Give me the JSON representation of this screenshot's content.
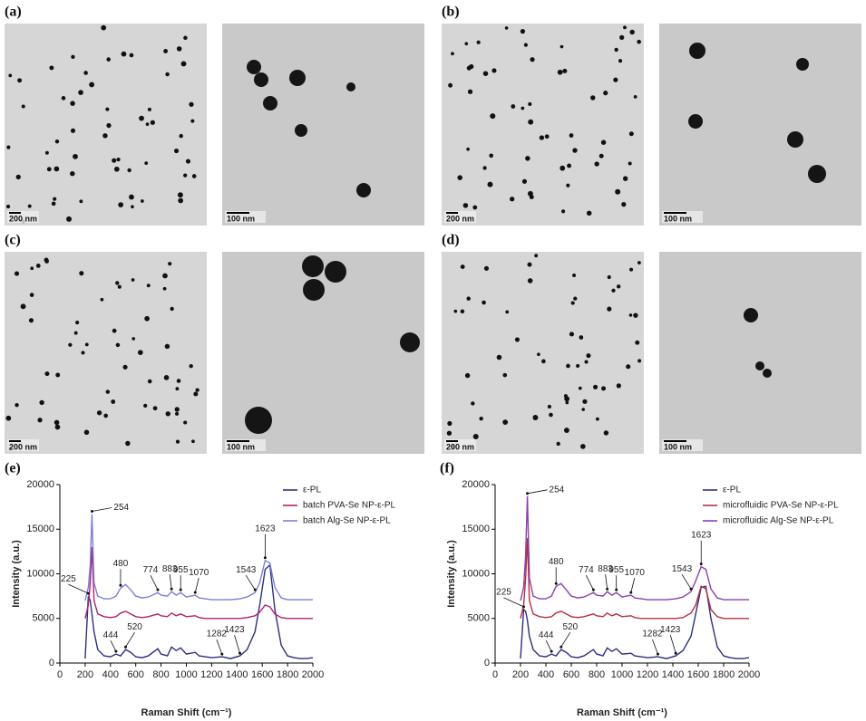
{
  "panels": [
    {
      "label": "(a)",
      "scale_bars": [
        "200 nm",
        "100 nm"
      ]
    },
    {
      "label": "(b)",
      "scale_bars": [
        "200 nm",
        "100 nm"
      ]
    },
    {
      "label": "(c)",
      "scale_bars": [
        "200 nm",
        "100 nm"
      ]
    },
    {
      "label": "(d)",
      "scale_bars": [
        "200 nm",
        "100 nm"
      ]
    }
  ],
  "chart_data": [
    {
      "type": "line",
      "panel_label": "(e)",
      "x_label": "Raman Shift (cm⁻¹)",
      "y_label": "Intensity (a.u.)",
      "xlim": [
        0,
        2000
      ],
      "xticks": [
        0,
        200,
        400,
        600,
        800,
        1000,
        1200,
        1400,
        1600,
        1800,
        2000
      ],
      "ylim": [
        0,
        20000
      ],
      "yticks": [
        0,
        5000,
        10000,
        15000,
        20000
      ],
      "x": [
        200,
        225,
        240,
        254,
        270,
        300,
        350,
        400,
        444,
        480,
        520,
        560,
        600,
        650,
        700,
        774,
        800,
        850,
        883,
        920,
        955,
        1000,
        1070,
        1100,
        1150,
        1200,
        1282,
        1350,
        1423,
        1480,
        1543,
        1580,
        1623,
        1660,
        1700,
        1750,
        1800,
        1850,
        1900,
        1950,
        2000
      ],
      "series": [
        {
          "name": "ε-PL",
          "color": "#2e2f80",
          "values": [
            500,
            7500,
            7000,
            5500,
            3500,
            1500,
            800,
            700,
            1000,
            800,
            1500,
            1200,
            700,
            600,
            800,
            1600,
            1000,
            800,
            1800,
            1400,
            1700,
            1000,
            1200,
            800,
            700,
            600,
            700,
            500,
            800,
            1500,
            3500,
            6500,
            10500,
            11000,
            6000,
            2000,
            800,
            600,
            500,
            500,
            600
          ]
        },
        {
          "name": "batch PVA-Se NP-ε-PL",
          "color": "#b0206e",
          "values": [
            5000,
            6500,
            9000,
            13000,
            7000,
            5500,
            5200,
            5100,
            5200,
            5600,
            5800,
            5500,
            5200,
            5100,
            5200,
            5500,
            5300,
            5200,
            5600,
            5300,
            5500,
            5200,
            5300,
            5100,
            5000,
            5000,
            5000,
            5000,
            5000,
            5100,
            5300,
            5700,
            6500,
            6300,
            5500,
            5100,
            5000,
            5000,
            5000,
            5000,
            5000
          ]
        },
        {
          "name": "batch Alg-Se NP-ε-PL",
          "color": "#7b7fd6",
          "values": [
            7000,
            8500,
            11000,
            16700,
            9000,
            7500,
            7200,
            7200,
            7500,
            8400,
            8800,
            8200,
            7500,
            7300,
            7400,
            7900,
            7600,
            7500,
            8000,
            7600,
            7900,
            7400,
            7600,
            7300,
            7200,
            7100,
            7100,
            7100,
            7200,
            7400,
            7900,
            9000,
            11500,
            11200,
            8500,
            7300,
            7100,
            7100,
            7100,
            7100,
            7100
          ]
        }
      ],
      "annotations": [
        254,
        225,
        480,
        774,
        883,
        955,
        1070,
        1543,
        1623,
        444,
        520,
        1282,
        1423
      ]
    },
    {
      "type": "line",
      "panel_label": "(f)",
      "x_label": "Raman Shift (cm⁻¹)",
      "y_label": "Intensity (a.u.)",
      "xlim": [
        0,
        2000
      ],
      "xticks": [
        0,
        200,
        400,
        600,
        800,
        1000,
        1200,
        1400,
        1600,
        1800,
        2000
      ],
      "ylim": [
        0,
        20000
      ],
      "yticks": [
        0,
        5000,
        10000,
        15000,
        20000
      ],
      "x": [
        200,
        225,
        240,
        254,
        270,
        300,
        350,
        400,
        444,
        480,
        520,
        560,
        600,
        650,
        700,
        774,
        800,
        850,
        883,
        920,
        955,
        1000,
        1070,
        1100,
        1150,
        1200,
        1282,
        1350,
        1423,
        1480,
        1543,
        1580,
        1623,
        1660,
        1700,
        1750,
        1800,
        1850,
        1900,
        1950,
        2000
      ],
      "series": [
        {
          "name": "ε-PL",
          "color": "#2e2f80",
          "values": [
            500,
            6000,
            5800,
            4800,
            3000,
            1500,
            800,
            700,
            1000,
            800,
            1500,
            1200,
            700,
            600,
            800,
            1500,
            1000,
            800,
            1700,
            1300,
            1600,
            1000,
            1100,
            800,
            700,
            600,
            700,
            500,
            800,
            1400,
            3000,
            5500,
            8500,
            8600,
            5000,
            1800,
            800,
            600,
            500,
            500,
            600
          ]
        },
        {
          "name": "microfluidic PVA-Se NP-ε-PL",
          "color": "#b5303c",
          "values": [
            5000,
            6500,
            9500,
            14000,
            7000,
            5500,
            5200,
            5100,
            5200,
            5600,
            5800,
            5500,
            5200,
            5100,
            5200,
            5500,
            5300,
            5200,
            5600,
            5300,
            5500,
            5200,
            5300,
            5100,
            5000,
            5000,
            5000,
            5000,
            5000,
            5100,
            5600,
            6500,
            8600,
            8300,
            6000,
            5200,
            5000,
            5000,
            5000,
            5000,
            5000
          ]
        },
        {
          "name": "microfluidic Alg-Se NP-ε-PL",
          "color": "#8b3fb0",
          "values": [
            7000,
            8500,
            12000,
            18700,
            9500,
            7500,
            7200,
            7200,
            7500,
            8600,
            8900,
            8200,
            7500,
            7300,
            7400,
            7900,
            7600,
            7500,
            8000,
            7600,
            7900,
            7400,
            7600,
            7300,
            7200,
            7100,
            7100,
            7100,
            7200,
            7400,
            8000,
            9200,
            10800,
            10500,
            8300,
            7300,
            7100,
            7100,
            7100,
            7100,
            7100
          ]
        }
      ],
      "annotations": [
        254,
        225,
        480,
        774,
        883,
        955,
        1070,
        1543,
        1623,
        444,
        520,
        1282,
        1423
      ]
    }
  ]
}
